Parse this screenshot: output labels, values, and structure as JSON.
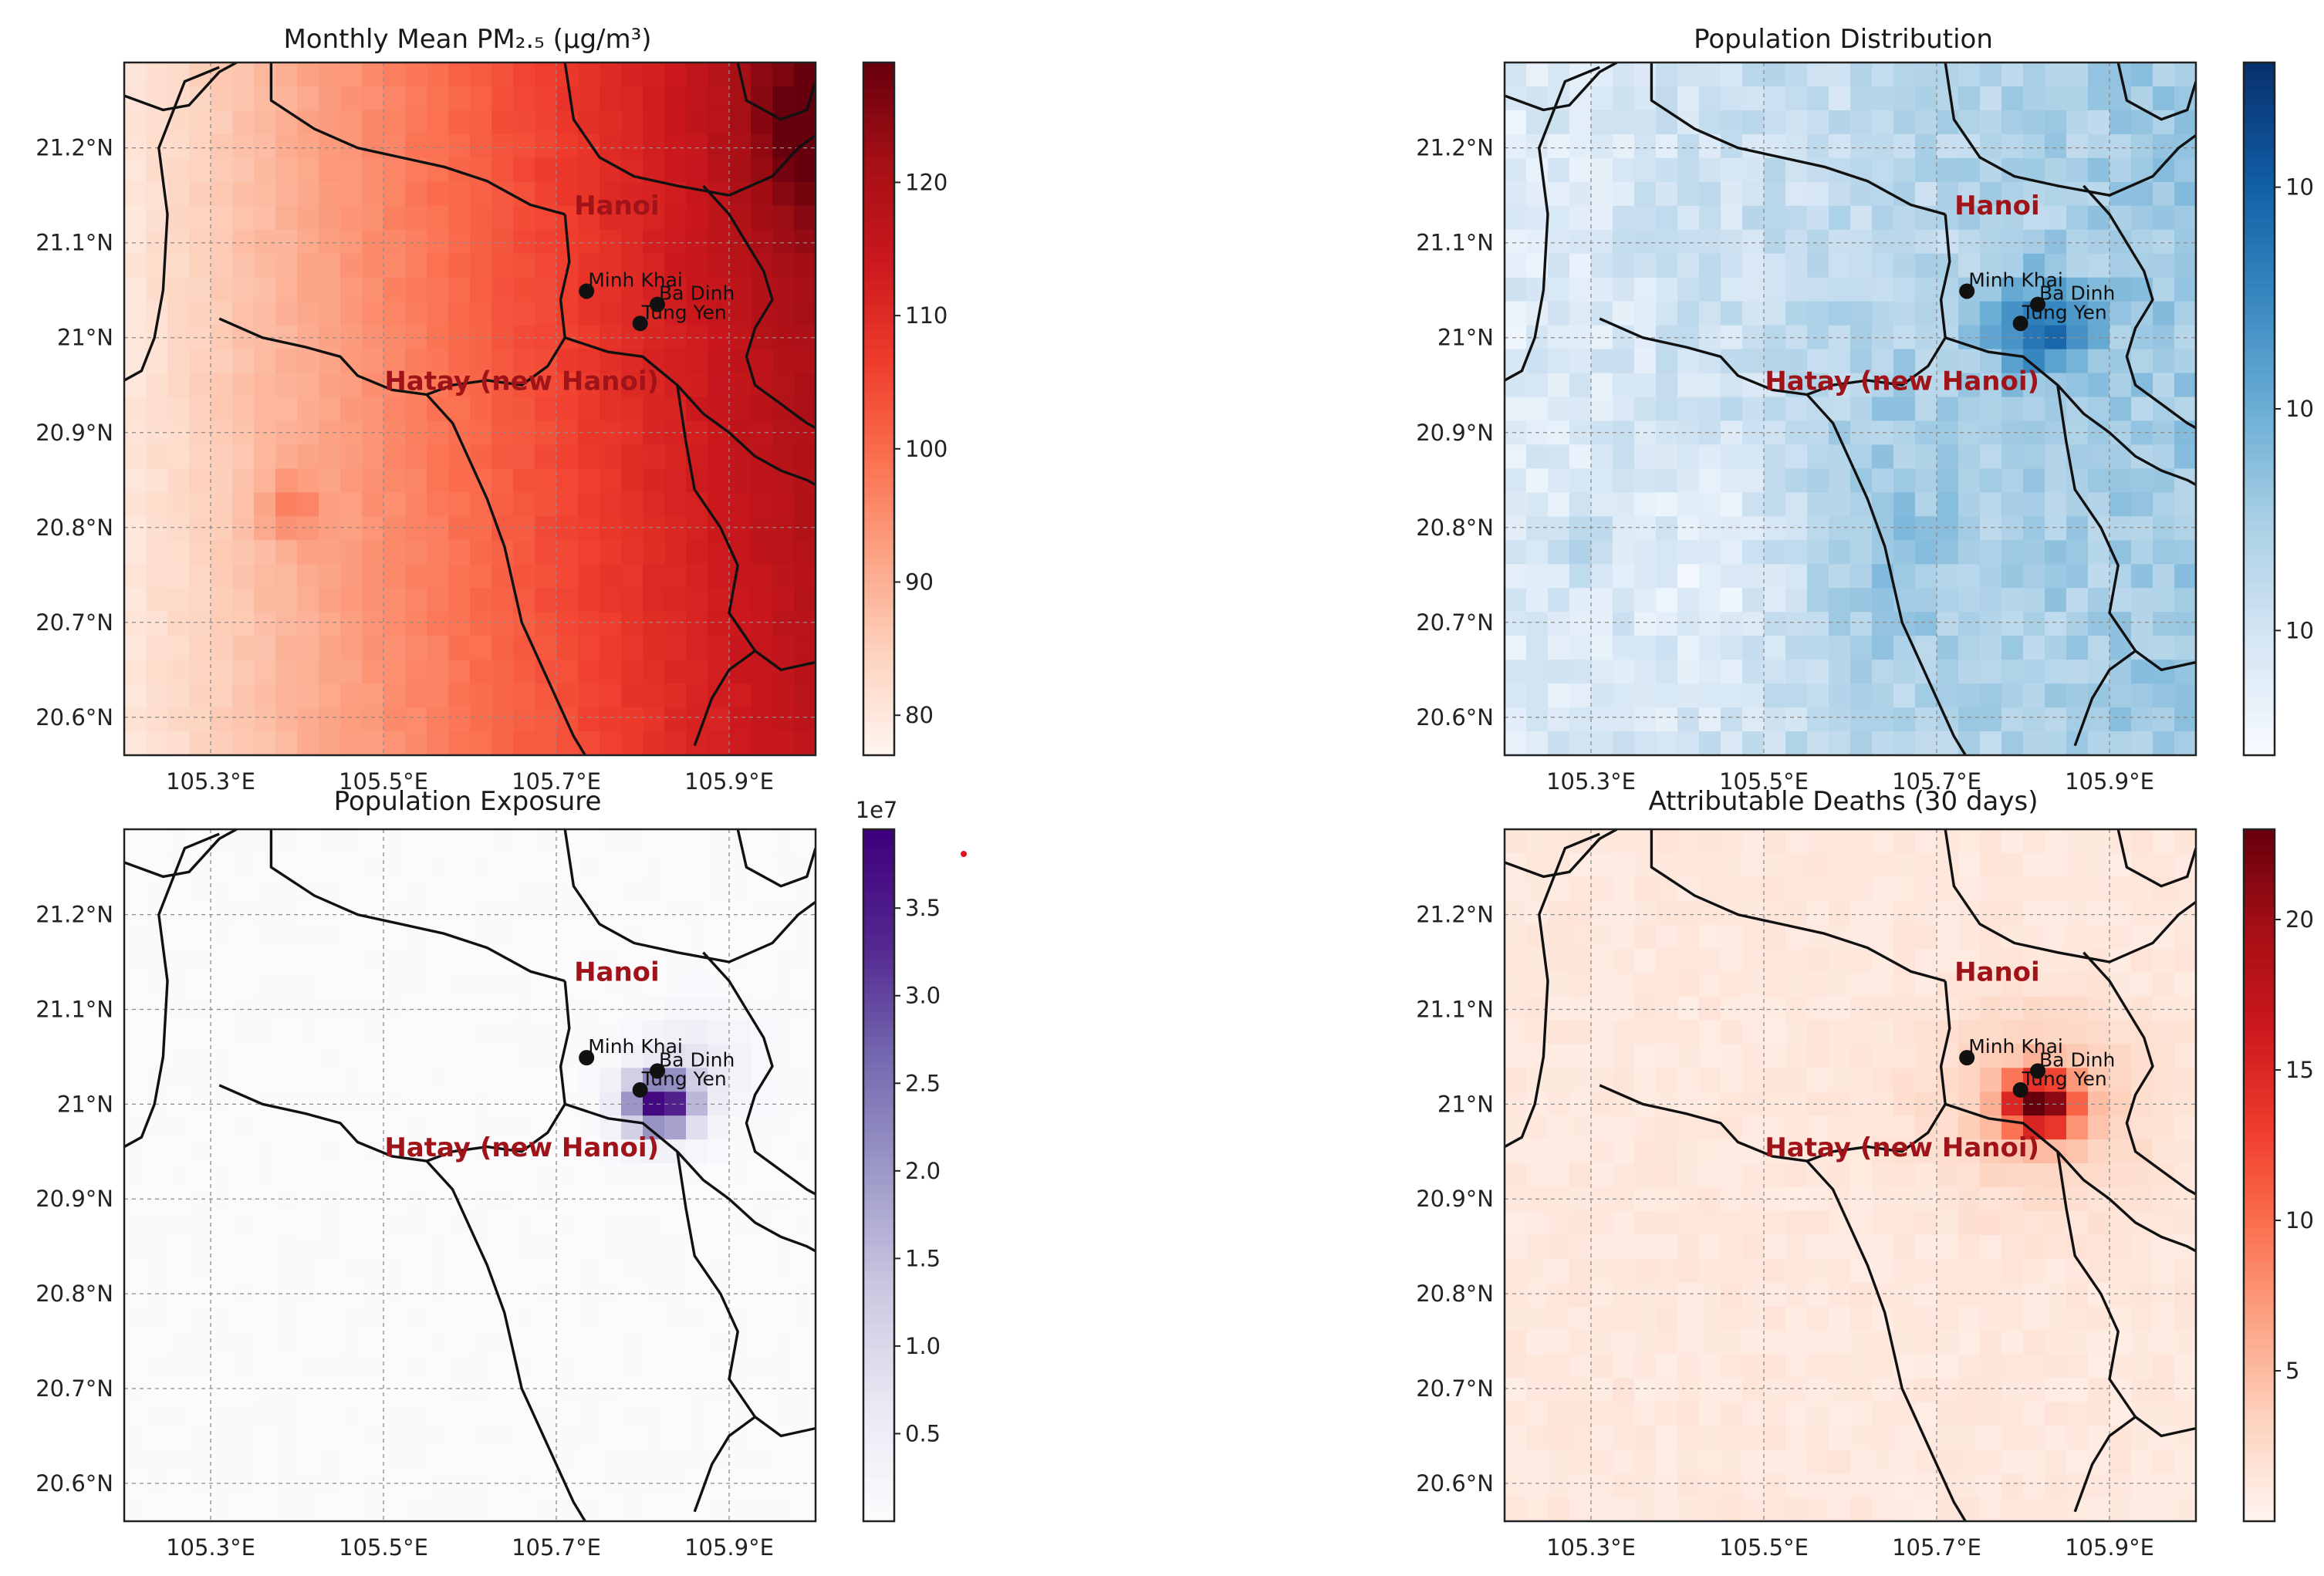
{
  "chart_data": [
    {
      "type": "heatmap",
      "id": "pm25",
      "title": "Monthly Mean PM₂.₅ (μg/m³)",
      "cmap": "Reds",
      "colorbar": {
        "vmin": 77,
        "vmax": 129,
        "ticks": [
          80,
          90,
          100,
          110,
          120
        ],
        "tick_labels": [
          "80",
          "90",
          "100",
          "110",
          "120"
        ],
        "offset_label": ""
      },
      "field": {
        "base": 80,
        "gradient": 44,
        "hotspot": {
          "lon": 105.39,
          "lat": 20.82,
          "amp": 8
        },
        "corner": {
          "lon": 106.0,
          "lat": 21.22,
          "amp": 10
        }
      }
    },
    {
      "type": "heatmap",
      "id": "population",
      "title": "Population Distribution",
      "cmap": "Blues",
      "colorbar": {
        "vmin": 0,
        "vmax": 1,
        "ticks": [
          0.18,
          0.5,
          0.82
        ],
        "tick_labels": [
          "10",
          "10",
          "10"
        ],
        "offset_label": ""
      },
      "field": {
        "center": {
          "lon": 105.82,
          "lat": 21.01,
          "amp": 0.45
        }
      }
    },
    {
      "type": "heatmap",
      "id": "exposure",
      "title": "Population Exposure",
      "cmap": "Purples",
      "colorbar": {
        "vmin": 0,
        "vmax": 3.95,
        "ticks": [
          0.5,
          1.0,
          1.5,
          2.0,
          2.5,
          3.0,
          3.5
        ],
        "tick_labels": [
          "0.5",
          "1.0",
          "1.5",
          "2.0",
          "2.5",
          "3.0",
          "3.5"
        ],
        "offset_label": "1e7"
      },
      "field": {
        "center": {
          "lon": 105.82,
          "lat": 21.0,
          "peak": 3.7
        }
      }
    },
    {
      "type": "heatmap",
      "id": "deaths",
      "title": "Attributable Deaths (30 days)",
      "cmap": "Reds",
      "colorbar": {
        "vmin": 0,
        "vmax": 23,
        "ticks": [
          5,
          10,
          15,
          20
        ],
        "tick_labels": [
          "5",
          "10",
          "15",
          "20"
        ],
        "offset_label": ""
      },
      "field": {
        "center": {
          "lon": 105.82,
          "lat": 21.0,
          "peak": 20
        }
      }
    }
  ],
  "axes": {
    "lon_range": [
      105.2,
      106.0
    ],
    "lat_range": [
      20.56,
      21.29
    ],
    "lon_ticks": [
      105.3,
      105.5,
      105.7,
      105.9
    ],
    "lon_tick_labels": [
      "105.3°E",
      "105.5°E",
      "105.7°E",
      "105.9°E"
    ],
    "lat_ticks": [
      20.6,
      20.7,
      20.8,
      20.9,
      21.0,
      21.1,
      21.2
    ],
    "lat_tick_labels": [
      "20.6°N",
      "20.7°N",
      "20.8°N",
      "20.9°N",
      "21°N",
      "21.1°N",
      "21.2°N"
    ],
    "grid": true
  },
  "cities": [
    {
      "name": "Minh Khai",
      "lon": 105.735,
      "lat": 21.049
    },
    {
      "name": "Ba Dinh",
      "lon": 105.817,
      "lat": 21.035
    },
    {
      "name": "Tung Yen",
      "lon": 105.797,
      "lat": 21.015
    }
  ],
  "regions": [
    {
      "name": "Hanoi",
      "lon": 105.77,
      "lat": 21.13
    },
    {
      "name": "Hatay (new Hanoi)",
      "lon": 105.66,
      "lat": 20.945
    }
  ],
  "boundaries": [
    [
      [
        105.17,
        21.27
      ],
      [
        105.2,
        21.255
      ],
      [
        105.245,
        21.24
      ],
      [
        105.275,
        21.245
      ],
      [
        105.31,
        21.28
      ],
      [
        105.33,
        21.29
      ]
    ],
    [
      [
        105.17,
        20.94
      ],
      [
        105.2,
        20.955
      ],
      [
        105.22,
        20.965
      ],
      [
        105.235,
        21.0
      ],
      [
        105.245,
        21.05
      ],
      [
        105.25,
        21.13
      ],
      [
        105.24,
        21.2
      ],
      [
        105.27,
        21.27
      ],
      [
        105.31,
        21.285
      ]
    ],
    [
      [
        105.37,
        21.3
      ],
      [
        105.37,
        21.25
      ],
      [
        105.42,
        21.22
      ],
      [
        105.47,
        21.2
      ],
      [
        105.52,
        21.19
      ],
      [
        105.57,
        21.18
      ],
      [
        105.62,
        21.165
      ],
      [
        105.67,
        21.14
      ],
      [
        105.71,
        21.13
      ]
    ],
    [
      [
        105.71,
        21.29
      ],
      [
        105.72,
        21.23
      ],
      [
        105.75,
        21.19
      ],
      [
        105.79,
        21.17
      ],
      [
        105.84,
        21.16
      ],
      [
        105.9,
        21.15
      ],
      [
        105.95,
        21.17
      ],
      [
        105.98,
        21.2
      ],
      [
        106.01,
        21.22
      ]
    ],
    [
      [
        105.91,
        21.29
      ],
      [
        105.92,
        21.25
      ],
      [
        105.96,
        21.23
      ],
      [
        105.99,
        21.24
      ],
      [
        106.0,
        21.27
      ]
    ],
    [
      [
        105.31,
        21.02
      ],
      [
        105.36,
        21.0
      ],
      [
        105.41,
        20.99
      ],
      [
        105.45,
        20.98
      ],
      [
        105.47,
        20.96
      ],
      [
        105.51,
        20.945
      ],
      [
        105.55,
        20.94
      ],
      [
        105.58,
        20.95
      ],
      [
        105.62,
        20.955
      ],
      [
        105.66,
        20.95
      ],
      [
        105.69,
        20.97
      ],
      [
        105.71,
        21.0
      ],
      [
        105.705,
        21.04
      ],
      [
        105.715,
        21.08
      ],
      [
        105.71,
        21.13
      ]
    ],
    [
      [
        105.55,
        20.94
      ],
      [
        105.58,
        20.91
      ],
      [
        105.6,
        20.87
      ],
      [
        105.62,
        20.83
      ],
      [
        105.64,
        20.78
      ],
      [
        105.65,
        20.74
      ],
      [
        105.66,
        20.7
      ],
      [
        105.68,
        20.66
      ],
      [
        105.7,
        20.62
      ],
      [
        105.72,
        20.58
      ],
      [
        105.74,
        20.55
      ]
    ],
    [
      [
        105.71,
        21.0
      ],
      [
        105.76,
        20.985
      ],
      [
        105.8,
        20.98
      ],
      [
        105.84,
        20.95
      ],
      [
        105.87,
        20.92
      ],
      [
        105.9,
        20.9
      ],
      [
        105.93,
        20.875
      ],
      [
        105.96,
        20.86
      ],
      [
        105.99,
        20.85
      ],
      [
        106.01,
        20.84
      ]
    ],
    [
      [
        105.84,
        20.95
      ],
      [
        105.85,
        20.89
      ],
      [
        105.86,
        20.84
      ],
      [
        105.89,
        20.8
      ],
      [
        105.91,
        20.76
      ],
      [
        105.9,
        20.71
      ],
      [
        105.93,
        20.67
      ],
      [
        105.96,
        20.65
      ],
      [
        106.01,
        20.66
      ]
    ],
    [
      [
        105.87,
        21.16
      ],
      [
        105.9,
        21.13
      ],
      [
        105.92,
        21.1
      ],
      [
        105.94,
        21.07
      ],
      [
        105.95,
        21.04
      ],
      [
        105.93,
        21.01
      ],
      [
        105.92,
        20.98
      ],
      [
        105.93,
        20.95
      ],
      [
        105.96,
        20.93
      ],
      [
        105.99,
        20.91
      ],
      [
        106.01,
        20.9
      ]
    ],
    [
      [
        105.86,
        20.57
      ],
      [
        105.88,
        20.62
      ],
      [
        105.9,
        20.65
      ],
      [
        105.93,
        20.67
      ]
    ]
  ]
}
